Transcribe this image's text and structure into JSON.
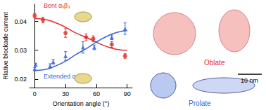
{
  "chart_data": {
    "type": "scatter",
    "xlabel": "Orientation angle (°)",
    "ylabel": "Rlative blockade current",
    "xlim": [
      -5,
      95
    ],
    "xticks": [
      0,
      30,
      60,
      90
    ],
    "ylim": [
      0.017,
      0.046
    ],
    "yticks": [
      0.02,
      0.03,
      0.04
    ],
    "grid": false,
    "series": [
      {
        "name": "Bent αᵥβ₃",
        "color": "#e0302a",
        "marker": "circle",
        "x": [
          0,
          8,
          30,
          50,
          57,
          75,
          88
        ],
        "values": [
          0.042,
          0.0405,
          0.036,
          0.0345,
          0.034,
          0.032,
          0.028
        ],
        "errors": [
          0.0008,
          0.001,
          0.0015,
          0.0012,
          0.001,
          0.001,
          0.0008
        ]
      },
      {
        "name": "Extended αᵥβ₃",
        "color": "#3a63d8",
        "marker": "triangle",
        "x": [
          0,
          1,
          15,
          18,
          30,
          47,
          58,
          75,
          88
        ],
        "values": [
          0.0235,
          0.025,
          0.0245,
          0.026,
          0.028,
          0.031,
          0.031,
          0.0345,
          0.0375
        ],
        "errors": [
          0.0005,
          0.0005,
          0.0008,
          0.0008,
          0.0015,
          0.002,
          0.0008,
          0.0008,
          0.002
        ]
      },
      {
        "type": "line",
        "color": "#e0302a",
        "x": [
          0,
          10,
          20,
          30,
          40,
          50,
          60,
          70,
          80,
          90
        ],
        "values": [
          0.041,
          0.0407,
          0.0396,
          0.038,
          0.036,
          0.0345,
          0.0328,
          0.0313,
          0.0303,
          0.03
        ]
      },
      {
        "type": "line",
        "color": "#3a63d8",
        "x": [
          0,
          10,
          20,
          30,
          40,
          50,
          60,
          70,
          80,
          90
        ],
        "values": [
          0.023,
          0.0233,
          0.0245,
          0.0262,
          0.0285,
          0.0305,
          0.0328,
          0.0348,
          0.0362,
          0.0368
        ]
      }
    ]
  },
  "structures": {
    "oblate": {
      "label": "Oblate",
      "color": "#e0302a"
    },
    "prolate": {
      "label": "Prolate",
      "color": "#3a63d8"
    },
    "scale_bar": "10 nm"
  }
}
